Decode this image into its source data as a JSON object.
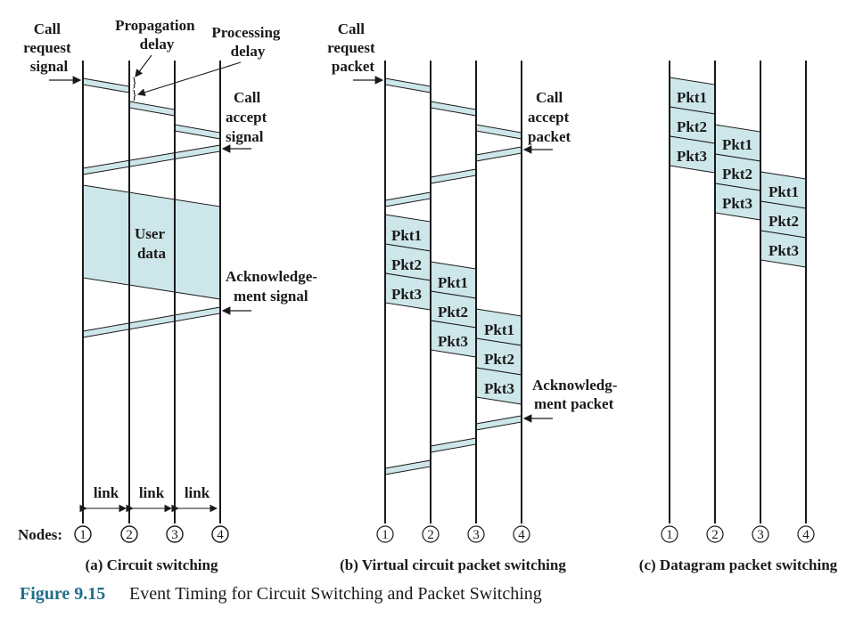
{
  "colors": {
    "fill": "#cde6ea",
    "stroke": "#1a1a1a",
    "accent": "#1f6f8b"
  },
  "nodes_label": "Nodes:",
  "node_numbers": [
    "1",
    "2",
    "3",
    "4"
  ],
  "panel_a": {
    "call_request": [
      "Call",
      "request",
      "signal"
    ],
    "propagation_delay": [
      "Propagation",
      "delay"
    ],
    "processing_delay": [
      "Processing",
      "delay"
    ],
    "call_accept": [
      "Call",
      "accept",
      "signal"
    ],
    "user_data": [
      "User",
      "data"
    ],
    "ack": [
      "Acknowledge-",
      "ment signal"
    ],
    "link": "link",
    "caption": "(a) Circuit switching"
  },
  "panel_b": {
    "call_request": [
      "Call",
      "request",
      "packet"
    ],
    "call_accept": [
      "Call",
      "accept",
      "packet"
    ],
    "ack": [
      "Acknowledg-",
      "ment packet"
    ],
    "packets": [
      "Pkt1",
      "Pkt2",
      "Pkt3"
    ],
    "caption": "(b) Virtual circuit packet switching"
  },
  "panel_c": {
    "packets": [
      "Pkt1",
      "Pkt2",
      "Pkt3"
    ],
    "caption": "(c) Datagram packet switching"
  },
  "figure": {
    "number": "Figure 9.15",
    "title": "Event Timing for Circuit Switching and Packet Switching"
  }
}
